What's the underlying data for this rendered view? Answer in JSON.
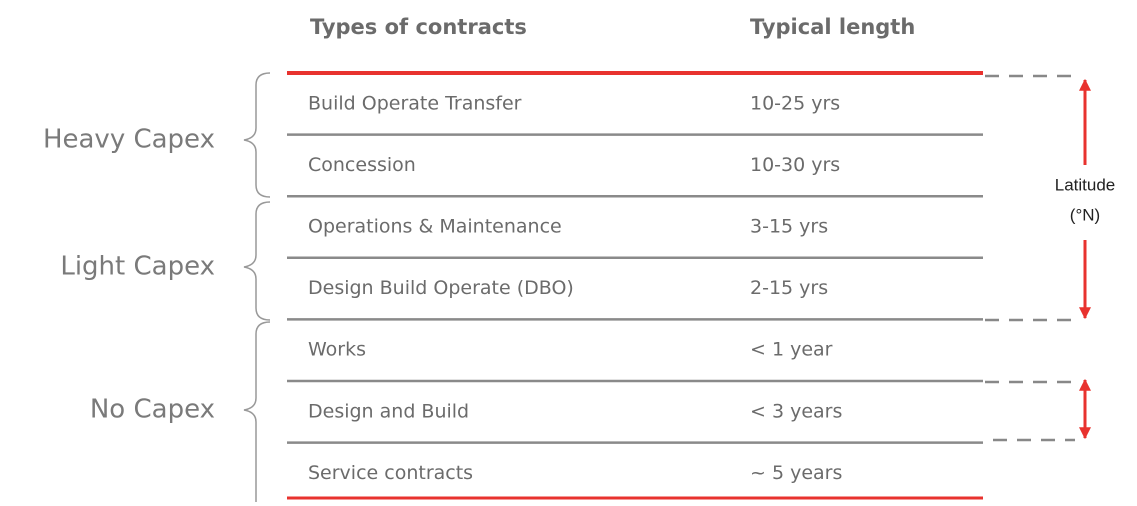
{
  "header": [
    "Types of contracts",
    "Typical length"
  ],
  "rows": [
    [
      "Build Operate Transfer",
      "10-25 yrs"
    ],
    [
      "Concession",
      "10-30 yrs"
    ],
    [
      "Operations & Maintenance",
      "3-15 yrs"
    ],
    [
      "Design Build Operate (DBO)",
      "2-15 yrs"
    ],
    [
      "Works",
      "< 1 year"
    ],
    [
      "Design and Build",
      "< 3 years"
    ],
    [
      "Service contracts",
      "~ 5 years"
    ]
  ],
  "groups": [
    "Heavy Capex",
    "Light Capex",
    "No Capex"
  ],
  "annotation": [
    "Latitude",
    "(°N)"
  ]
}
